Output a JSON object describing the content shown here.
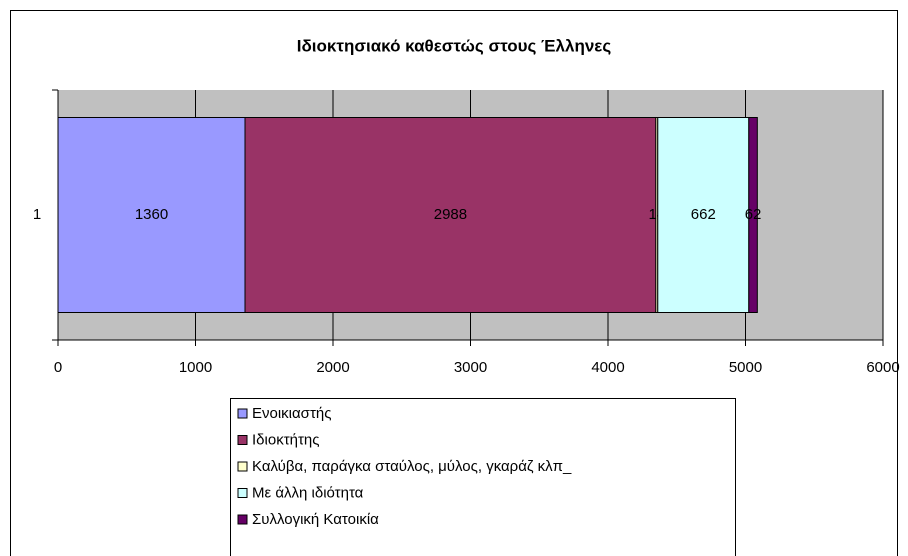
{
  "chart_data": {
    "type": "stacked-barh",
    "title": "Ιδιοκτησιακό καθεστώς στους Έλληνες",
    "categories": [
      "1"
    ],
    "series": [
      {
        "name": "Ενοικιαστής",
        "color": "#9999FF",
        "values": [
          1360
        ]
      },
      {
        "name": "Ιδιοκτήτης",
        "color": "#993366",
        "values": [
          2988
        ]
      },
      {
        "name": "Καλύβα, παράγκα σταύλος, μύλος, γκαράζ κλπ_",
        "color": "#FFFFCC",
        "values": [
          14
        ]
      },
      {
        "name": "Με άλλη ιδιότητα",
        "color": "#CCFFFF",
        "values": [
          662
        ]
      },
      {
        "name": "Συλλογική Κατοικία",
        "color": "#660066",
        "values": [
          62
        ]
      }
    ],
    "xlim": [
      0,
      6000
    ],
    "xticks": [
      0,
      1000,
      2000,
      3000,
      4000,
      5000,
      6000
    ],
    "grid": true,
    "plot_background": "#C0C0C0",
    "legend": "bottom"
  }
}
